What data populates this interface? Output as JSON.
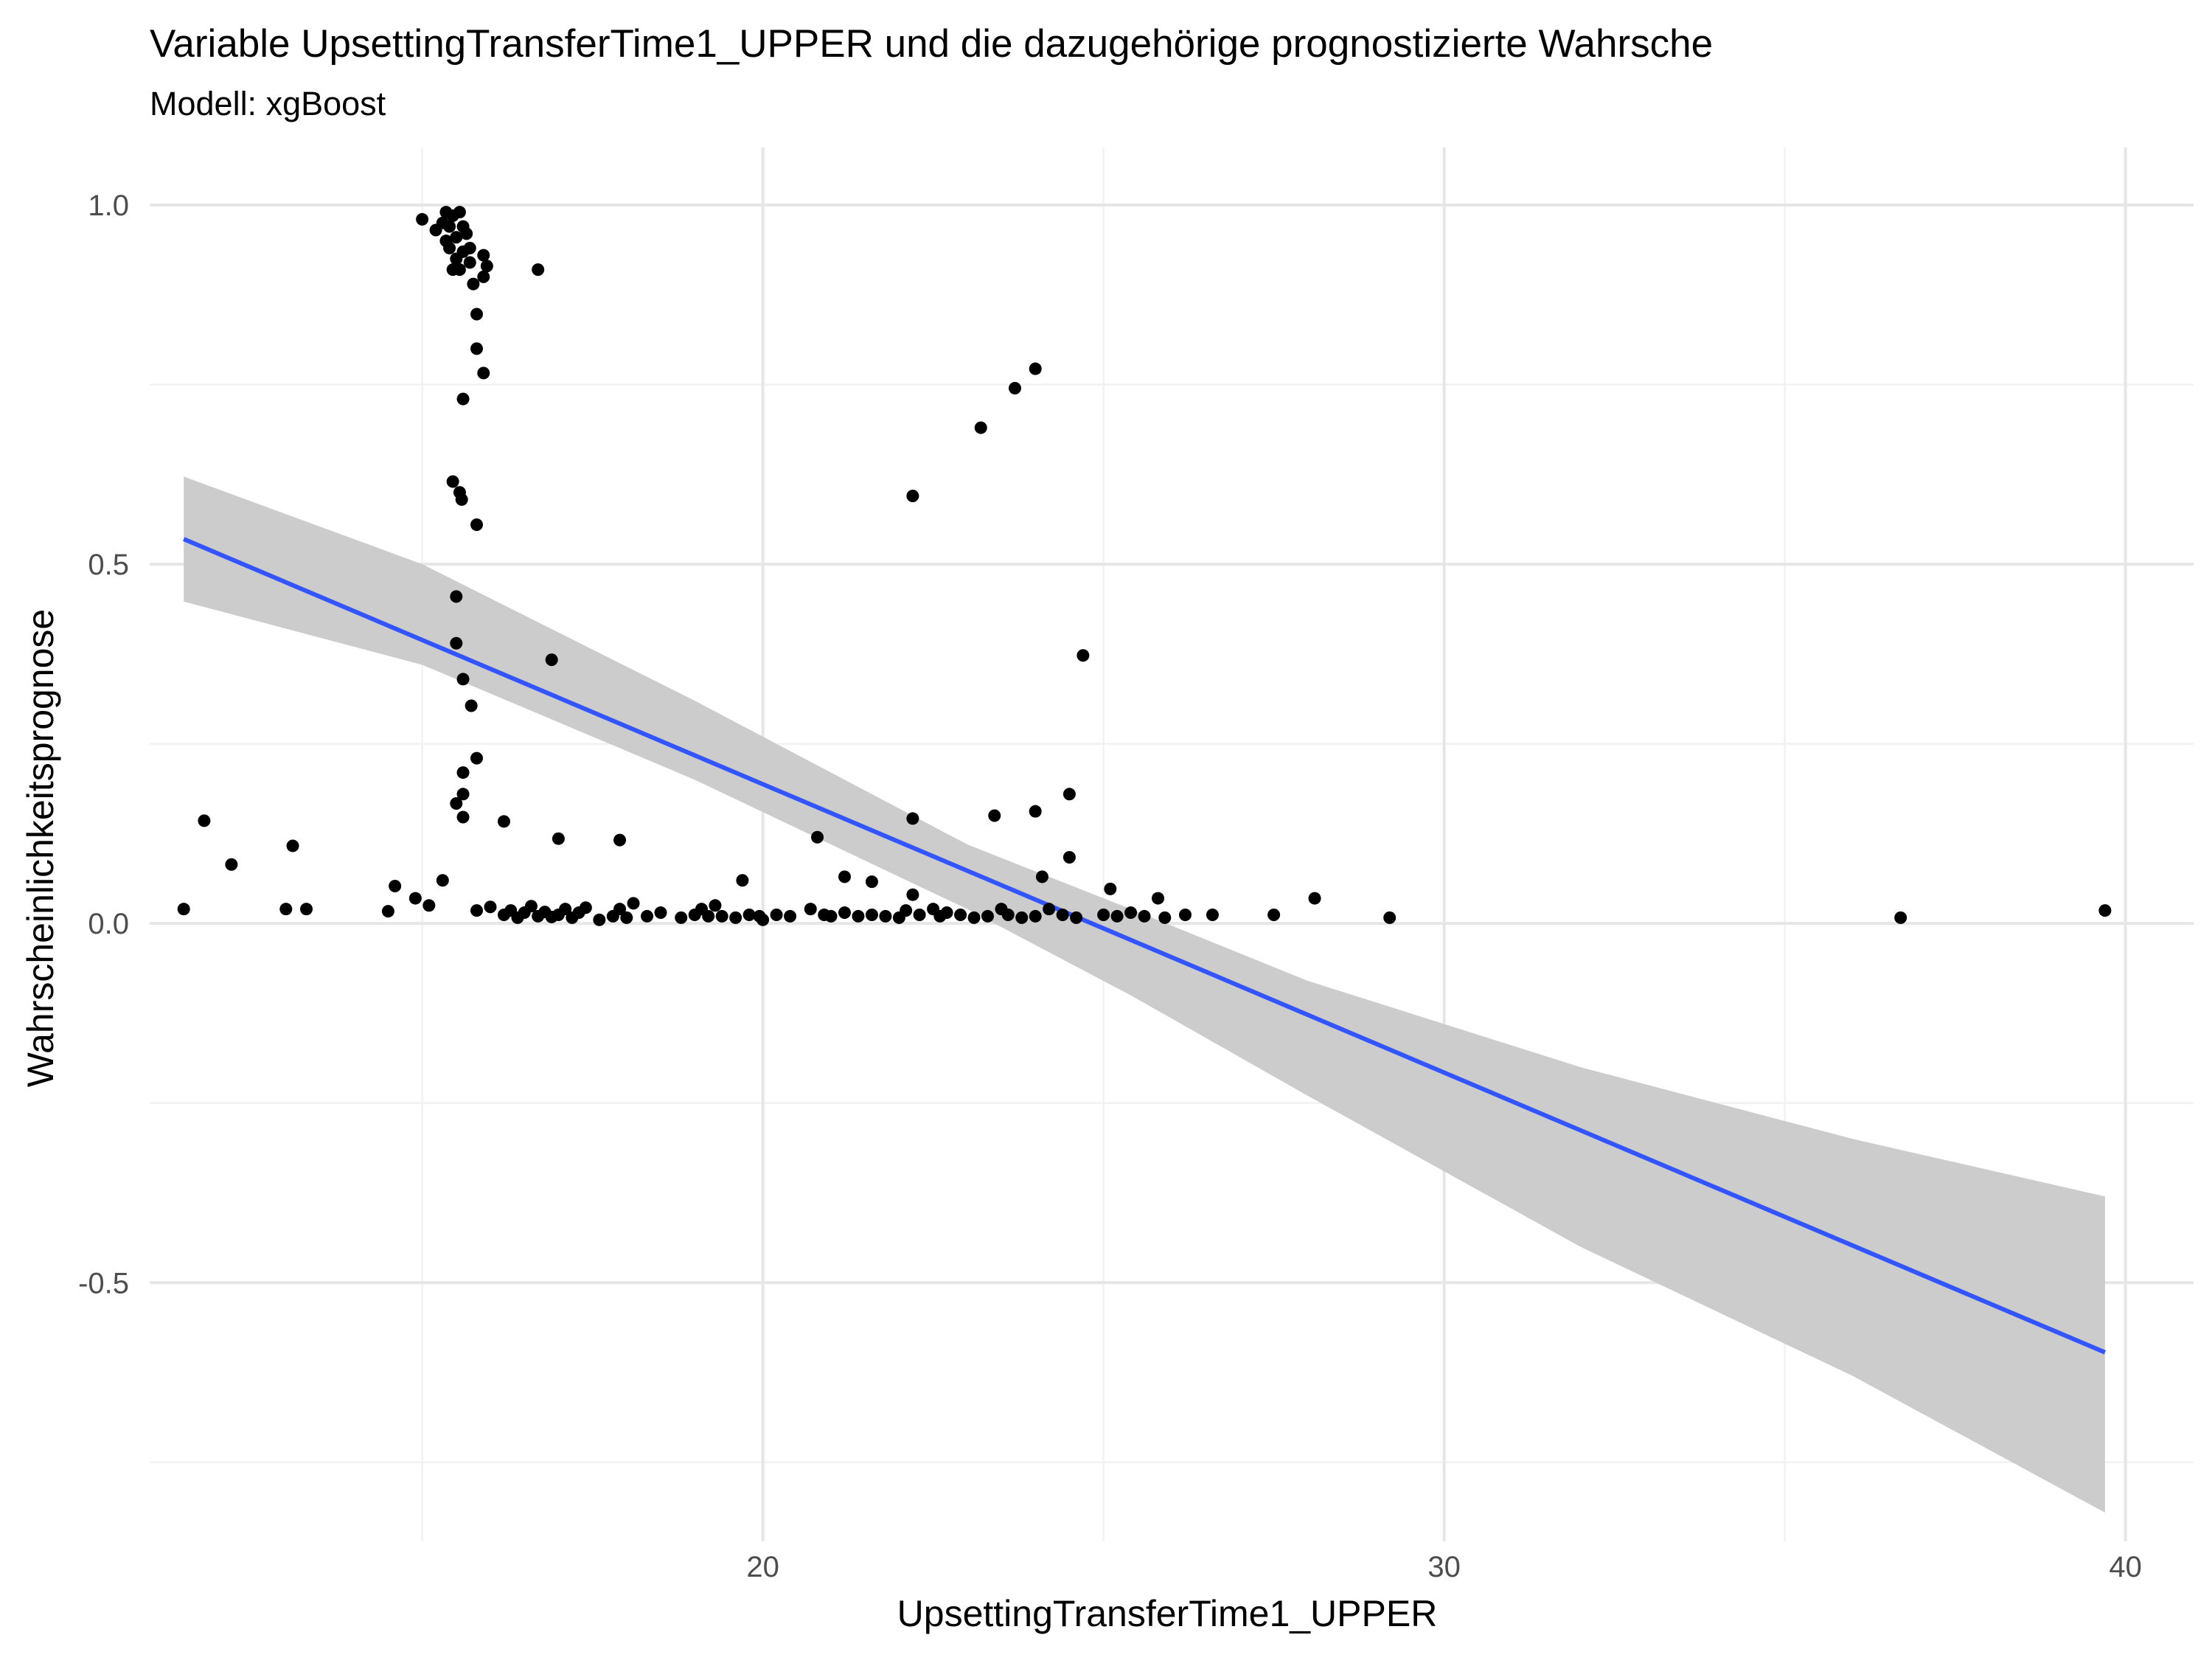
{
  "chart_data": {
    "type": "scatter",
    "title": "Variable UpsettingTransferTime1_UPPER und die dazugehörige prognostizierte Wahrsche",
    "subtitle": "Modell: xgBoost",
    "xlabel": "UpsettingTransferTime1_UPPER",
    "ylabel": "Wahrscheinlichkeitsprognose",
    "xlim": [
      11.0,
      41.0
    ],
    "ylim": [
      -0.86,
      1.08
    ],
    "x_ticks": [
      {
        "value": 20,
        "label": "20"
      },
      {
        "value": 30,
        "label": "30"
      },
      {
        "value": 40,
        "label": "40"
      }
    ],
    "x_minor_ticks": [
      15,
      25,
      35
    ],
    "y_ticks": [
      {
        "value": 1.0,
        "label": "1.0"
      },
      {
        "value": 0.5,
        "label": "0.5"
      },
      {
        "value": 0.0,
        "label": "0.0"
      },
      {
        "value": -0.5,
        "label": "-0.5"
      }
    ],
    "y_minor_ticks": [
      0.75,
      0.25,
      -0.25,
      -0.75
    ],
    "grid": true,
    "legend": "none",
    "colors": {
      "points": "#000000",
      "fit_line": "#3355ff",
      "ribbon": "#cccccc",
      "grid_major": "#e6e6e6",
      "grid_minor": "#f2f2f2",
      "tick_label": "#4d4d4d"
    },
    "series": [
      {
        "type": "scatter",
        "points": [
          [
            11.5,
            0.02
          ],
          [
            11.8,
            0.143
          ],
          [
            12.2,
            0.082
          ],
          [
            13.0,
            0.02
          ],
          [
            13.1,
            0.108
          ],
          [
            13.3,
            0.02
          ],
          [
            14.5,
            0.017
          ],
          [
            14.6,
            0.052
          ],
          [
            14.9,
            0.035
          ],
          [
            15.1,
            0.025
          ],
          [
            15.3,
            0.06
          ],
          [
            15.0,
            0.98
          ],
          [
            15.2,
            0.965
          ],
          [
            15.3,
            0.975
          ],
          [
            15.35,
            0.99
          ],
          [
            15.4,
            0.97
          ],
          [
            15.45,
            0.985
          ],
          [
            15.35,
            0.95
          ],
          [
            15.5,
            0.955
          ],
          [
            15.55,
            0.99
          ],
          [
            15.6,
            0.97
          ],
          [
            15.65,
            0.96
          ],
          [
            15.7,
            0.94
          ],
          [
            15.4,
            0.94
          ],
          [
            15.5,
            0.925
          ],
          [
            15.45,
            0.91
          ],
          [
            15.6,
            0.935
          ],
          [
            15.55,
            0.91
          ],
          [
            15.7,
            0.92
          ],
          [
            15.9,
            0.93
          ],
          [
            15.95,
            0.915
          ],
          [
            15.9,
            0.9
          ],
          [
            15.75,
            0.89
          ],
          [
            16.7,
            0.91
          ],
          [
            15.8,
            0.848
          ],
          [
            15.8,
            0.8
          ],
          [
            15.9,
            0.766
          ],
          [
            15.6,
            0.73
          ],
          [
            15.45,
            0.615
          ],
          [
            15.55,
            0.6
          ],
          [
            15.58,
            0.59
          ],
          [
            15.8,
            0.555
          ],
          [
            15.5,
            0.455
          ],
          [
            15.5,
            0.39
          ],
          [
            16.9,
            0.367
          ],
          [
            15.6,
            0.34
          ],
          [
            15.72,
            0.303
          ],
          [
            15.8,
            0.23
          ],
          [
            15.6,
            0.21
          ],
          [
            15.6,
            0.18
          ],
          [
            15.5,
            0.167
          ],
          [
            15.6,
            0.148
          ],
          [
            16.2,
            0.142
          ],
          [
            17.0,
            0.118
          ],
          [
            17.9,
            0.116
          ],
          [
            15.8,
            0.018
          ],
          [
            16.0,
            0.023
          ],
          [
            16.2,
            0.012
          ],
          [
            16.3,
            0.018
          ],
          [
            16.4,
            0.008
          ],
          [
            16.5,
            0.015
          ],
          [
            16.6,
            0.024
          ],
          [
            16.7,
            0.01
          ],
          [
            16.8,
            0.016
          ],
          [
            16.9,
            0.009
          ],
          [
            17.0,
            0.012
          ],
          [
            17.1,
            0.02
          ],
          [
            17.2,
            0.008
          ],
          [
            17.3,
            0.015
          ],
          [
            17.4,
            0.022
          ],
          [
            17.6,
            0.005
          ],
          [
            17.8,
            0.01
          ],
          [
            17.9,
            0.02
          ],
          [
            18.0,
            0.008
          ],
          [
            18.1,
            0.028
          ],
          [
            18.3,
            0.01
          ],
          [
            18.5,
            0.015
          ],
          [
            18.8,
            0.008
          ],
          [
            19.0,
            0.012
          ],
          [
            19.1,
            0.02
          ],
          [
            19.2,
            0.01
          ],
          [
            19.3,
            0.025
          ],
          [
            19.4,
            0.01
          ],
          [
            19.6,
            0.008
          ],
          [
            19.8,
            0.012
          ],
          [
            19.95,
            0.01
          ],
          [
            20.0,
            0.005
          ],
          [
            20.2,
            0.012
          ],
          [
            20.4,
            0.01
          ],
          [
            20.7,
            0.02
          ],
          [
            20.9,
            0.012
          ],
          [
            21.0,
            0.01
          ],
          [
            21.2,
            0.015
          ],
          [
            21.4,
            0.01
          ],
          [
            21.6,
            0.012
          ],
          [
            21.8,
            0.01
          ],
          [
            22.0,
            0.008
          ],
          [
            22.1,
            0.018
          ],
          [
            22.2,
            0.04
          ],
          [
            22.3,
            0.012
          ],
          [
            22.5,
            0.02
          ],
          [
            22.6,
            0.01
          ],
          [
            22.7,
            0.015
          ],
          [
            22.9,
            0.012
          ],
          [
            23.1,
            0.008
          ],
          [
            23.3,
            0.01
          ],
          [
            23.5,
            0.02
          ],
          [
            23.6,
            0.012
          ],
          [
            23.8,
            0.008
          ],
          [
            24.0,
            0.01
          ],
          [
            24.2,
            0.02
          ],
          [
            24.4,
            0.012
          ],
          [
            24.6,
            0.008
          ],
          [
            25.0,
            0.012
          ],
          [
            25.2,
            0.01
          ],
          [
            25.4,
            0.015
          ],
          [
            25.6,
            0.01
          ],
          [
            25.9,
            0.008
          ],
          [
            26.2,
            0.012
          ],
          [
            26.6,
            0.012
          ],
          [
            27.5,
            0.012
          ],
          [
            28.1,
            0.035
          ],
          [
            29.2,
            0.008
          ],
          [
            36.7,
            0.008
          ],
          [
            39.7,
            0.018
          ],
          [
            19.7,
            0.06
          ],
          [
            20.8,
            0.12
          ],
          [
            21.2,
            0.065
          ],
          [
            21.6,
            0.058
          ],
          [
            22.2,
            0.146
          ],
          [
            22.2,
            0.595
          ],
          [
            23.2,
            0.69
          ],
          [
            23.4,
            0.15
          ],
          [
            23.7,
            0.745
          ],
          [
            24.0,
            0.772
          ],
          [
            24.0,
            0.156
          ],
          [
            24.1,
            0.065
          ],
          [
            24.5,
            0.18
          ],
          [
            24.5,
            0.092
          ],
          [
            24.7,
            0.373
          ],
          [
            25.1,
            0.048
          ],
          [
            25.8,
            0.035
          ]
        ]
      },
      {
        "type": "line",
        "fit": [
          [
            11.5,
            0.535
          ],
          [
            39.7,
            -0.597
          ]
        ]
      },
      {
        "type": "area",
        "band_upper": [
          [
            11.5,
            0.622
          ],
          [
            15.0,
            0.5
          ],
          [
            19.0,
            0.31
          ],
          [
            23.0,
            0.11
          ],
          [
            25.4,
            0.02
          ],
          [
            28.0,
            -0.08
          ],
          [
            32.0,
            -0.2
          ],
          [
            36.0,
            -0.3
          ],
          [
            39.7,
            -0.38
          ]
        ],
        "band_lower": [
          [
            11.5,
            0.448
          ],
          [
            15.0,
            0.36
          ],
          [
            19.0,
            0.2
          ],
          [
            23.0,
            0.02
          ],
          [
            25.4,
            -0.1
          ],
          [
            28.0,
            -0.24
          ],
          [
            32.0,
            -0.45
          ],
          [
            36.0,
            -0.63
          ],
          [
            39.7,
            -0.82
          ]
        ]
      }
    ]
  }
}
